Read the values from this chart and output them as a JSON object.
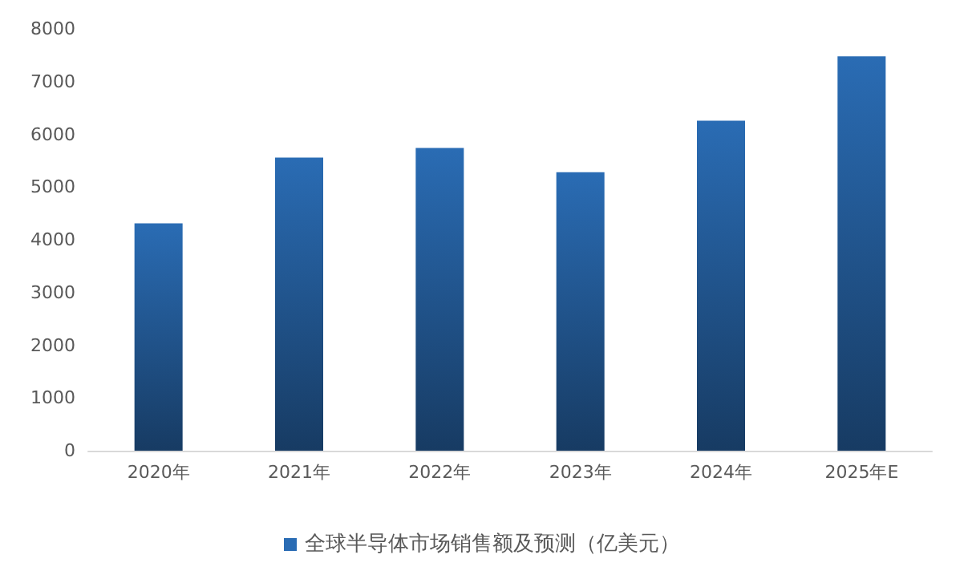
{
  "chart_data": {
    "type": "bar",
    "categories": [
      "2020年",
      "2021年",
      "2022年",
      "2023年",
      "2024年",
      "2025年E"
    ],
    "series": [
      {
        "name": "全球半导体市场销售额及预测（亿美元）",
        "color": "#2a6cb4",
        "values": [
          4310,
          5560,
          5740,
          5280,
          6260,
          7480
        ]
      }
    ],
    "ylim": [
      0,
      8000
    ],
    "yticks": [
      0,
      1000,
      2000,
      3000,
      4000,
      5000,
      6000,
      7000,
      8000
    ],
    "grid": false,
    "legend": "bottom"
  }
}
